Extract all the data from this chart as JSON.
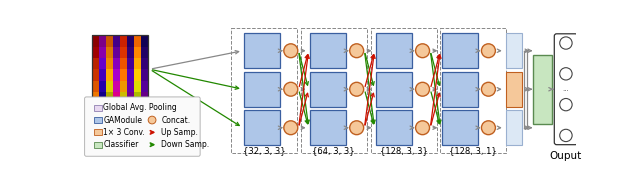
{
  "bg_color": "#ffffff",
  "stage_labels": [
    "{32, 3, 3}",
    "{64, 3, 3}",
    "{128, 3, 3}",
    "{128, 3, 1}"
  ],
  "ga_color": "#aec6e8",
  "ga_edge": "#3a5fa0",
  "gap_color": "#dce8f5",
  "gap_edge": "#9ab0d0",
  "conv_color": "#f5c89a",
  "conv_edge": "#c06020",
  "cls_color": "#c8e6c0",
  "cls_edge": "#5a8a50",
  "concat_color": "#f5c89a",
  "concat_edge": "#d07020",
  "up_color": "#cc1100",
  "dn_color": "#228800",
  "gray_color": "#888888",
  "legend_gap_color": "#e8d8f0",
  "legend_gap_edge": "#9080b0"
}
